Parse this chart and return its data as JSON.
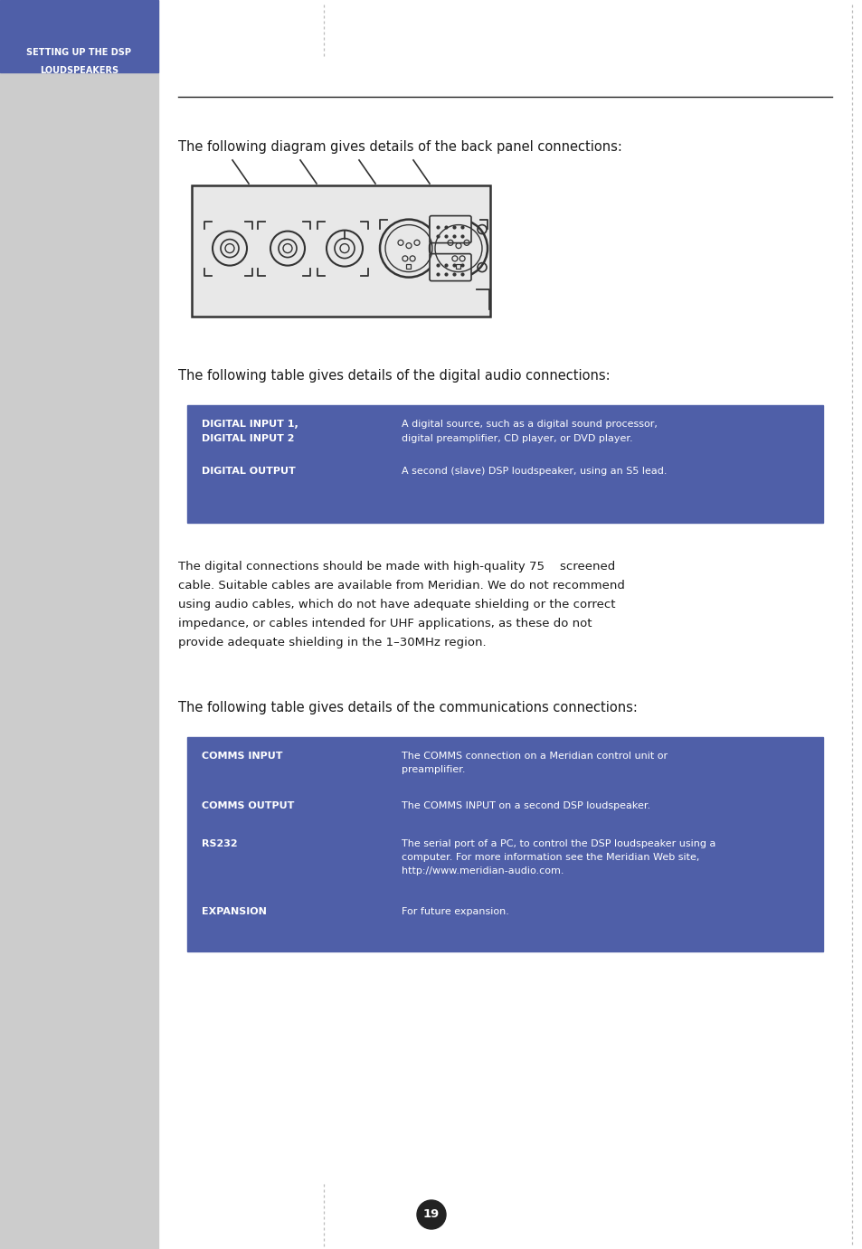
{
  "page_bg": "#ffffff",
  "sidebar_bg": "#cccccc",
  "header_bg": "#4f5fa8",
  "header_text_color": "#ffffff",
  "table_bg": "#4f5fa8",
  "table_text_color": "#ffffff",
  "body_text_color": "#1a1a1a",
  "dotted_line_color": "#bbbbbb",
  "diag_bg": "#e8e8e8",
  "diag_line": "#333333",
  "header_title_line1": "SETTING UP THE DSP",
  "header_title_line2": "LOUDSPEAKERS",
  "intro_text1": "The following diagram gives details of the back panel connections:",
  "intro_text2": "The following table gives details of the digital audio connections:",
  "intro_text3": "The following table gives details of the communications connections:",
  "body_paragraph": "The digital connections should be made with high-quality 75    screened\ncable. Suitable cables are available from Meridian. We do not recommend\nusing audio cables, which do not have adequate shielding or the correct\nimpedance, or cables intended for UHF applications, as these do not\nprovide adequate shielding in the 1–30MHz region.",
  "digital_table": [
    {
      "label1": "DIGITAL INPUT 1,",
      "label2": "DIGITAL INPUT 2",
      "desc1": "A digital source, such as a digital sound processor,",
      "desc2": "digital preamplifier, CD player, or DVD player."
    },
    {
      "label1": "DIGITAL OUTPUT",
      "label2": "",
      "desc1": "A second (slave) DSP loudspeaker, using an S5 lead.",
      "desc2": ""
    }
  ],
  "comms_table": [
    {
      "label": "COMMS INPUT",
      "desc": "The COMMS connection on a Meridian control unit or\npreamplifier."
    },
    {
      "label": "COMMS OUTPUT",
      "desc": "The COMMS INPUT on a second DSP loudspeaker."
    },
    {
      "label": "RS232",
      "desc": "The serial port of a PC, to control the DSP loudspeaker using a\ncomputer. For more information see the Meridian Web site,\nhttp://www.meridian-audio.com."
    },
    {
      "label": "EXPANSION",
      "desc": "For future expansion."
    }
  ],
  "page_number": "19"
}
